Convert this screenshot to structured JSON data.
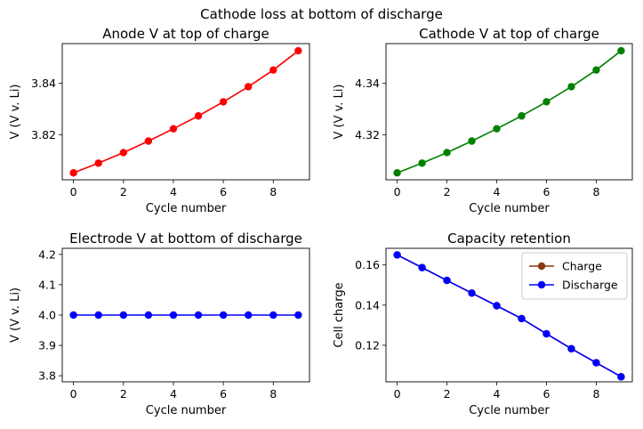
{
  "suptitle": "Cathode loss at bottom of discharge",
  "chart_data": [
    {
      "type": "line",
      "title": "Anode V at top of charge",
      "xlabel": "Cycle number",
      "ylabel": "V (V v. Li)",
      "xlim": [
        -0.45,
        9.45
      ],
      "ylim": [
        3.8024,
        3.8555
      ],
      "xticks": [
        0,
        2,
        4,
        6,
        8
      ],
      "xtick_labels": [
        "0",
        "2",
        "4",
        "6",
        "8"
      ],
      "yticks": [
        3.82,
        3.84
      ],
      "ytick_labels": [
        "3.82",
        "3.84"
      ],
      "grid": false,
      "series": [
        {
          "color": "#ff0000",
          "marker": "circle",
          "x": [
            0,
            1,
            2,
            3,
            4,
            5,
            6,
            7,
            8,
            9
          ],
          "y": [
            3.8051,
            3.8089,
            3.813,
            3.8175,
            3.8223,
            3.8273,
            3.8328,
            3.8387,
            3.8452,
            3.8527
          ]
        }
      ]
    },
    {
      "type": "line",
      "title": "Cathode V at top of charge",
      "xlabel": "Cycle number",
      "ylabel": "V (V v. Li)",
      "xlim": [
        -0.45,
        9.45
      ],
      "ylim": [
        4.3024,
        4.3555
      ],
      "xticks": [
        0,
        2,
        4,
        6,
        8
      ],
      "xtick_labels": [
        "0",
        "2",
        "4",
        "6",
        "8"
      ],
      "yticks": [
        4.32,
        4.34
      ],
      "ytick_labels": [
        "4.32",
        "4.34"
      ],
      "grid": false,
      "series": [
        {
          "color": "#008000",
          "marker": "circle",
          "x": [
            0,
            1,
            2,
            3,
            4,
            5,
            6,
            7,
            8,
            9
          ],
          "y": [
            4.3051,
            4.3089,
            4.313,
            4.3175,
            4.3223,
            4.3273,
            4.3328,
            4.3387,
            4.3452,
            4.3527
          ]
        }
      ]
    },
    {
      "type": "line",
      "title": "Electrode V at bottom of discharge",
      "xlabel": "Cycle number",
      "ylabel": "V (V v. Li)",
      "xlim": [
        -0.45,
        9.45
      ],
      "ylim": [
        3.78,
        4.22
      ],
      "xticks": [
        0,
        2,
        4,
        6,
        8
      ],
      "xtick_labels": [
        "0",
        "2",
        "4",
        "6",
        "8"
      ],
      "yticks": [
        3.8,
        3.9,
        4.0,
        4.1,
        4.2
      ],
      "ytick_labels": [
        "3.8",
        "3.9",
        "4.0",
        "4.1",
        "4.2"
      ],
      "grid": false,
      "series": [
        {
          "color": "#0000ff",
          "marker": "circle",
          "x": [
            0,
            1,
            2,
            3,
            4,
            5,
            6,
            7,
            8,
            9
          ],
          "y": [
            4.0,
            4.0,
            4.0,
            4.0,
            4.0,
            4.0,
            4.0,
            4.0,
            4.0,
            4.0
          ]
        }
      ]
    },
    {
      "type": "line",
      "title": "Capacity retention",
      "xlabel": "Cycle number",
      "ylabel": "Cell charge",
      "xlim": [
        -0.45,
        9.45
      ],
      "ylim": [
        0.1018,
        0.1683
      ],
      "xticks": [
        0,
        2,
        4,
        6,
        8
      ],
      "xtick_labels": [
        "0",
        "2",
        "4",
        "6",
        "8"
      ],
      "yticks": [
        0.12,
        0.14,
        0.16
      ],
      "ytick_labels": [
        "0.12",
        "0.14",
        "0.16"
      ],
      "grid": false,
      "legend": "top-right",
      "series": [
        {
          "name": "Charge",
          "color": "#8b3a0f",
          "marker": "circle",
          "x": [
            0,
            1,
            2,
            3,
            4,
            5,
            6,
            7,
            8,
            9
          ],
          "y": [
            0.165,
            0.1587,
            0.1523,
            0.146,
            0.1397,
            0.1333,
            0.1257,
            0.1183,
            0.1113,
            0.1043
          ]
        },
        {
          "name": "Discharge",
          "color": "#0000ff",
          "marker": "circle",
          "x": [
            0,
            1,
            2,
            3,
            4,
            5,
            6,
            7,
            8,
            9
          ],
          "y": [
            0.165,
            0.1587,
            0.1523,
            0.146,
            0.1397,
            0.1333,
            0.1257,
            0.1183,
            0.1113,
            0.1043
          ]
        }
      ]
    }
  ]
}
